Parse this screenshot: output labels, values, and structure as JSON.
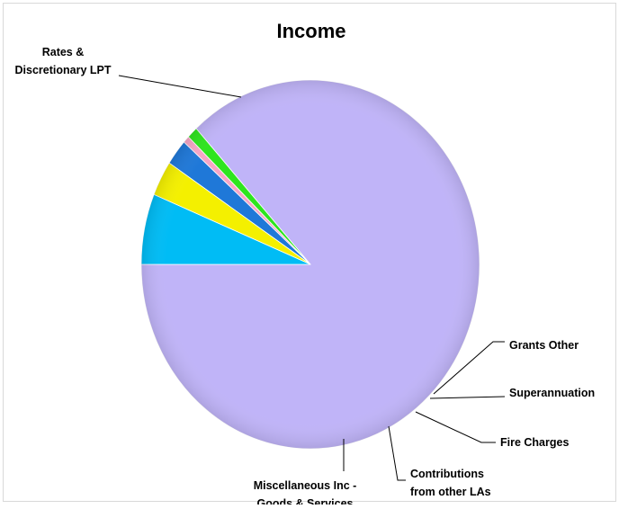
{
  "chart_data": {
    "type": "pie",
    "title": "Income",
    "start_angle_deg": 180,
    "direction": "counterclockwise",
    "legend": "none",
    "slices": [
      {
        "label_lines": [
          "Rates &",
          "Discretionary LPT"
        ],
        "value": 84.2,
        "color": "#c0b4f8"
      },
      {
        "label_lines": [
          "Grants Other"
        ],
        "value": 1.0,
        "color": "#2ee51e"
      },
      {
        "label_lines": [
          "Superannuation"
        ],
        "value": 0.6,
        "color": "#f7a6c6"
      },
      {
        "label_lines": [
          "Fire Charges"
        ],
        "value": 2.2,
        "color": "#1f78d8"
      },
      {
        "label_lines": [
          "Contributions",
          "from other LAs"
        ],
        "value": 3.0,
        "color": "#f4f000"
      },
      {
        "label_lines": [
          "Miscellaneous Inc -",
          "Goods & Services"
        ],
        "value": 6.0,
        "color": "#00bcf5"
      }
    ]
  }
}
